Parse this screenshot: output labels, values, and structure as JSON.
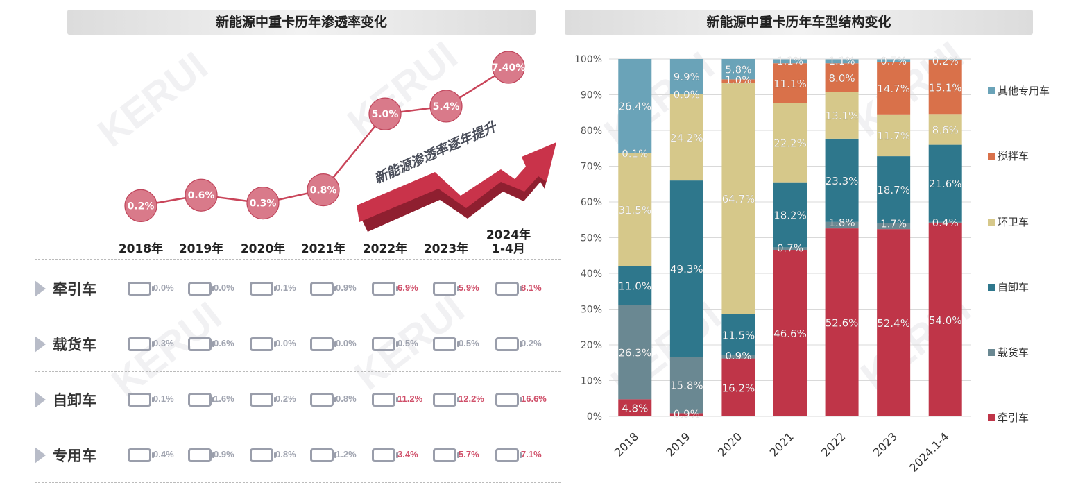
{
  "left_panel": {
    "title": "新能源中重卡历年渗透率变化",
    "slogan": "新能源渗透率逐年提升"
  },
  "right_panel": {
    "title": "新能源中重卡历年车型结构变化"
  },
  "watermark": "KERUI",
  "colors": {
    "circle_fill": "#d97a8a",
    "circle_stroke": "#c0455b",
    "line": "#c94459",
    "arrow_top": "#c9334a",
    "arrow_side": "#8f1f30",
    "grey_battery": "#9a9eab",
    "grey_text": "#a0a4b0",
    "red_text": "#d0506a"
  },
  "chart_data": [
    {
      "type": "line",
      "title": "新能源中重卡历年渗透率变化",
      "categories": [
        "2018年",
        "2019年",
        "2020年",
        "2021年",
        "2022年",
        "2023年",
        "2024年 1-4月"
      ],
      "values": [
        0.2,
        0.6,
        0.3,
        0.8,
        5.0,
        5.4,
        7.4
      ],
      "labels": [
        "0.2%",
        "0.6%",
        "0.3%",
        "0.8%",
        "5.0%",
        "5.4%",
        "7.40%"
      ],
      "unit": "%"
    },
    {
      "type": "table",
      "rows": [
        {
          "label": "牵引车",
          "values": [
            "0.0%",
            "0.0%",
            "0.1%",
            "0.9%",
            "6.9%",
            "5.9%",
            "8.1%"
          ],
          "highlight": [
            false,
            false,
            false,
            false,
            true,
            true,
            true
          ]
        },
        {
          "label": "载货车",
          "values": [
            "0.3%",
            "0.6%",
            "0.0%",
            "0.0%",
            "0.5%",
            "0.5%",
            "0.2%"
          ],
          "highlight": [
            false,
            false,
            false,
            false,
            false,
            false,
            false
          ]
        },
        {
          "label": "自卸车",
          "values": [
            "0.1%",
            "1.6%",
            "0.2%",
            "0.8%",
            "11.2%",
            "12.2%",
            "16.6%"
          ],
          "highlight": [
            false,
            false,
            false,
            false,
            true,
            true,
            true
          ]
        },
        {
          "label": "专用车",
          "values": [
            "0.4%",
            "0.9%",
            "0.8%",
            "1.2%",
            "3.4%",
            "5.7%",
            "7.1%"
          ],
          "highlight": [
            false,
            false,
            false,
            false,
            true,
            true,
            true
          ]
        }
      ]
    },
    {
      "type": "bar",
      "stacked": true,
      "title": "新能源中重卡历年车型结构变化",
      "categories": [
        "2018",
        "2019",
        "2020",
        "2021",
        "2022",
        "2023",
        "2024.1-4"
      ],
      "ylim": [
        0,
        100
      ],
      "yticks": [
        "0%",
        "10%",
        "20%",
        "30%",
        "40%",
        "50%",
        "60%",
        "70%",
        "80%",
        "90%",
        "100%"
      ],
      "legend_position": "right",
      "series": [
        {
          "name": "牵引车",
          "color": "#bf3548",
          "values": [
            4.8,
            0.9,
            16.2,
            46.6,
            52.6,
            52.4,
            54.0
          ]
        },
        {
          "name": "载货车",
          "color": "#6a8892",
          "values": [
            26.3,
            15.8,
            0.9,
            0.7,
            1.8,
            1.7,
            0.4
          ]
        },
        {
          "name": "自卸车",
          "color": "#2e778c",
          "values": [
            11.0,
            49.3,
            11.5,
            18.2,
            23.3,
            18.7,
            21.6
          ]
        },
        {
          "name": "环卫车",
          "color": "#d6c88a",
          "values": [
            31.5,
            24.2,
            64.7,
            22.2,
            13.1,
            11.7,
            8.6
          ]
        },
        {
          "name": "搅拌车",
          "color": "#d9714a",
          "values": [
            0.1,
            0.0,
            1.0,
            11.1,
            8.0,
            14.7,
            15.1
          ]
        },
        {
          "name": "其他专用车",
          "color": "#6aa3b8",
          "values": [
            26.4,
            9.9,
            5.8,
            1.1,
            1.1,
            0.7,
            0.2
          ]
        }
      ],
      "labels": [
        [
          "4.8%",
          "26.3%",
          "11.0%",
          "31.5%",
          "0.1%",
          "26.4%"
        ],
        [
          "0.9%",
          "15.8%",
          "49.3%",
          "24.2%",
          "0.0%",
          "9.9%"
        ],
        [
          "16.2%",
          "0.9%",
          "11.5%",
          "64.7%",
          "1.0%",
          "5.8%"
        ],
        [
          "46.6%",
          "0.7%",
          "18.2%",
          "22.2%",
          "11.1%",
          "1.1%"
        ],
        [
          "52.6%",
          "1.8%",
          "23.3%",
          "13.1%",
          "8.0%",
          "1.1%"
        ],
        [
          "52.4%",
          "1.7%",
          "18.7%",
          "11.7%",
          "14.7%",
          "0.7%"
        ],
        [
          "54.0%",
          "0.4%",
          "21.6%",
          "8.6%",
          "15.1%",
          "0.2%"
        ]
      ]
    }
  ]
}
